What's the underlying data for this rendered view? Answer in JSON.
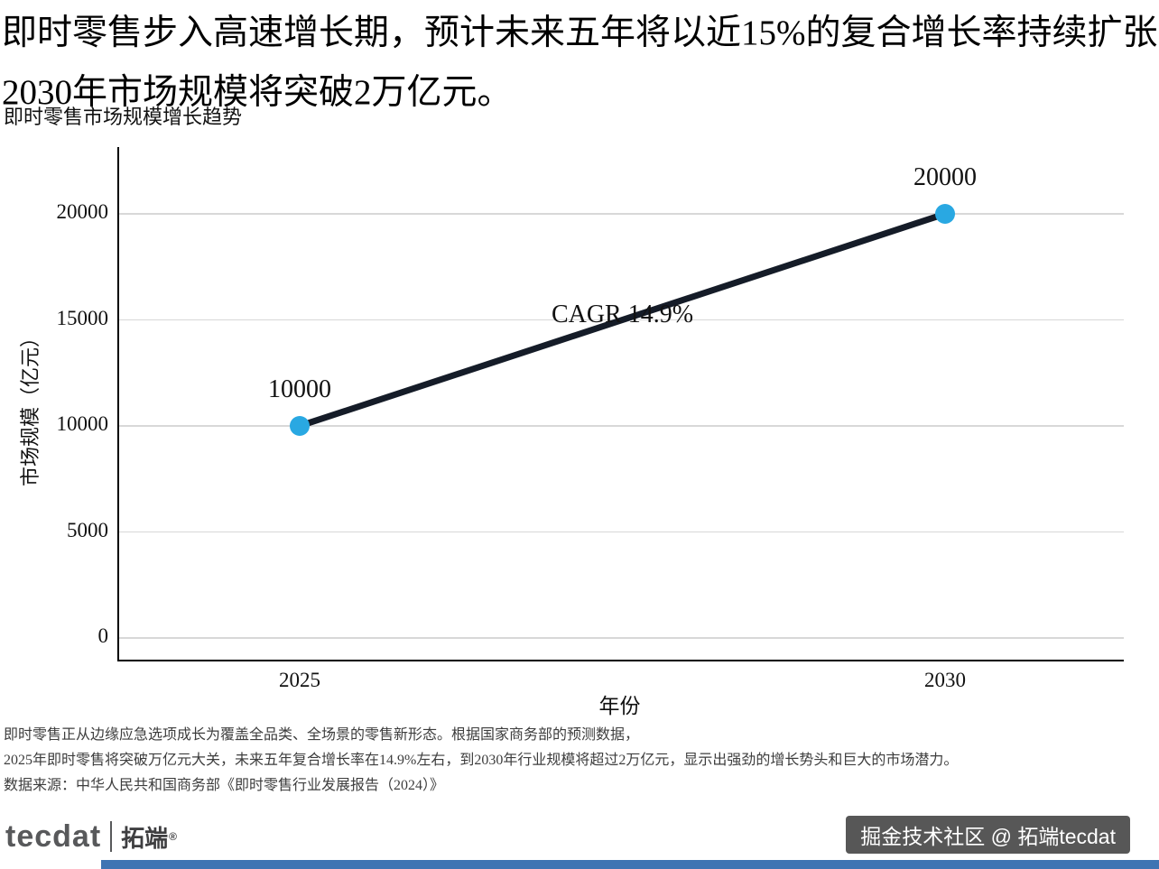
{
  "page": {
    "heading_line1": "即时零售步入高速增长期，预计未来五年将以近15%的复合增长率持续扩张，",
    "heading_line2": "2030年市场规模将突破2万亿元。"
  },
  "chart_data": {
    "type": "line",
    "title": "即时零售市场规模增长趋势",
    "xlabel": "年份",
    "ylabel": "市场规模（亿元）",
    "x": [
      "2025",
      "2030"
    ],
    "values": [
      10000,
      20000
    ],
    "point_labels": [
      "10000",
      "20000"
    ],
    "annotation": "CAGR 14.9%",
    "ylim": [
      0,
      23000
    ],
    "yticks": [
      0,
      5000,
      10000,
      15000,
      20000
    ],
    "grid": true,
    "legend": "none",
    "line_color": "#151c28",
    "point_color": "#29a8e2"
  },
  "footer": {
    "note_line1": "即时零售正从边缘应急选项成长为覆盖全品类、全场景的零售新形态。根据国家商务部的预测数据，",
    "note_line2": "2025年即时零售将突破万亿元大关，未来五年复合增长率在14.9%左右，到2030年行业规模将超过2万亿元，显示出强劲的增长势头和巨大的市场潜力。",
    "source": "数据来源：中华人民共和国商务部《即时零售行业发展报告（2024）》"
  },
  "branding": {
    "logo_text": "tecdat",
    "logo_cn": "拓端",
    "logo_reg": "®",
    "watermark": "掘金技术社区 @ 拓端tecdat"
  }
}
